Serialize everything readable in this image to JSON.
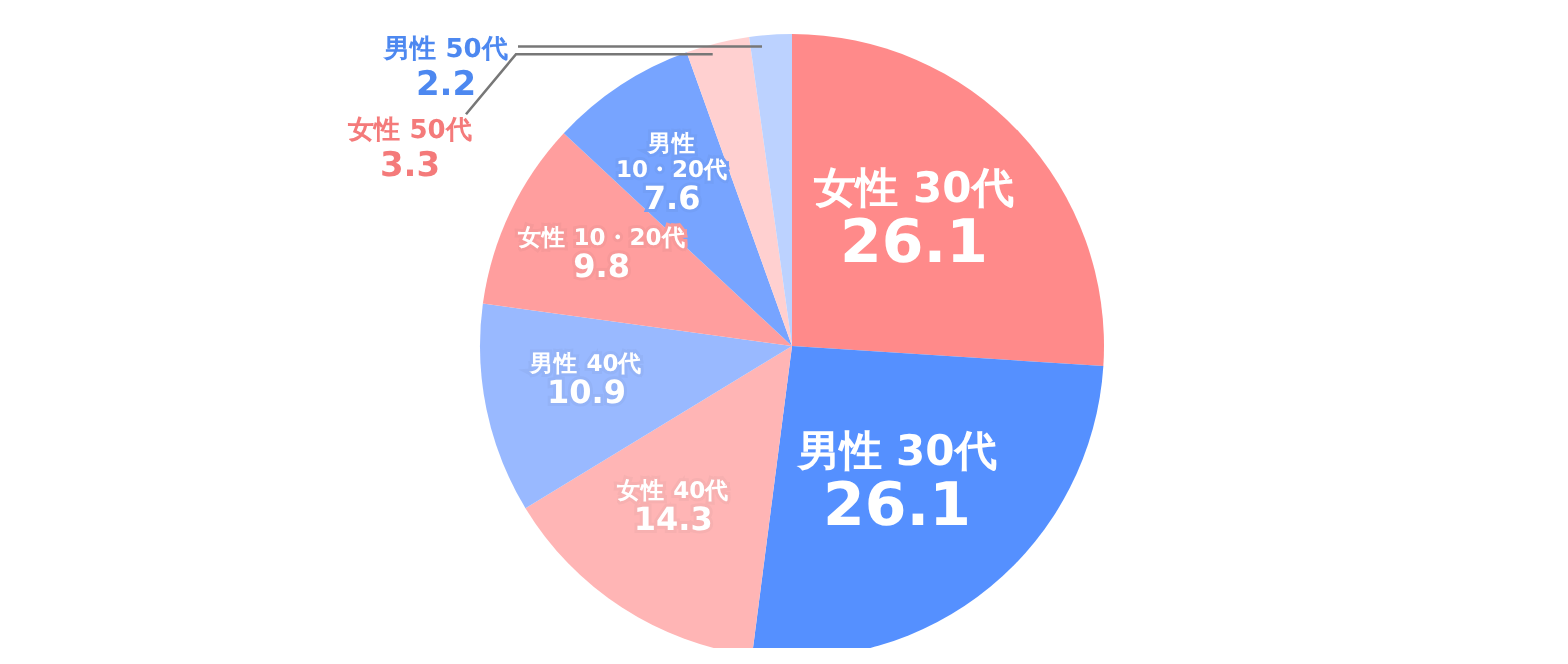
{
  "chart_data": {
    "type": "pie",
    "categories": [
      "女性 30代",
      "男性 30代",
      "女性 40代",
      "男性 40代",
      "女性 10・20代",
      "男性 10・20代",
      "女性 50代",
      "男性 50代"
    ],
    "values": [
      26.1,
      26.1,
      14.3,
      10.9,
      9.8,
      7.6,
      3.3,
      2.2
    ],
    "colors": [
      "#ff8a8a",
      "#5590ff",
      "#ffb5b5",
      "#99b9ff",
      "#ff9e9e",
      "#77a4ff",
      "#ffd0d0",
      "#bcd2ff"
    ],
    "data_labels": true,
    "legend": false
  }
}
